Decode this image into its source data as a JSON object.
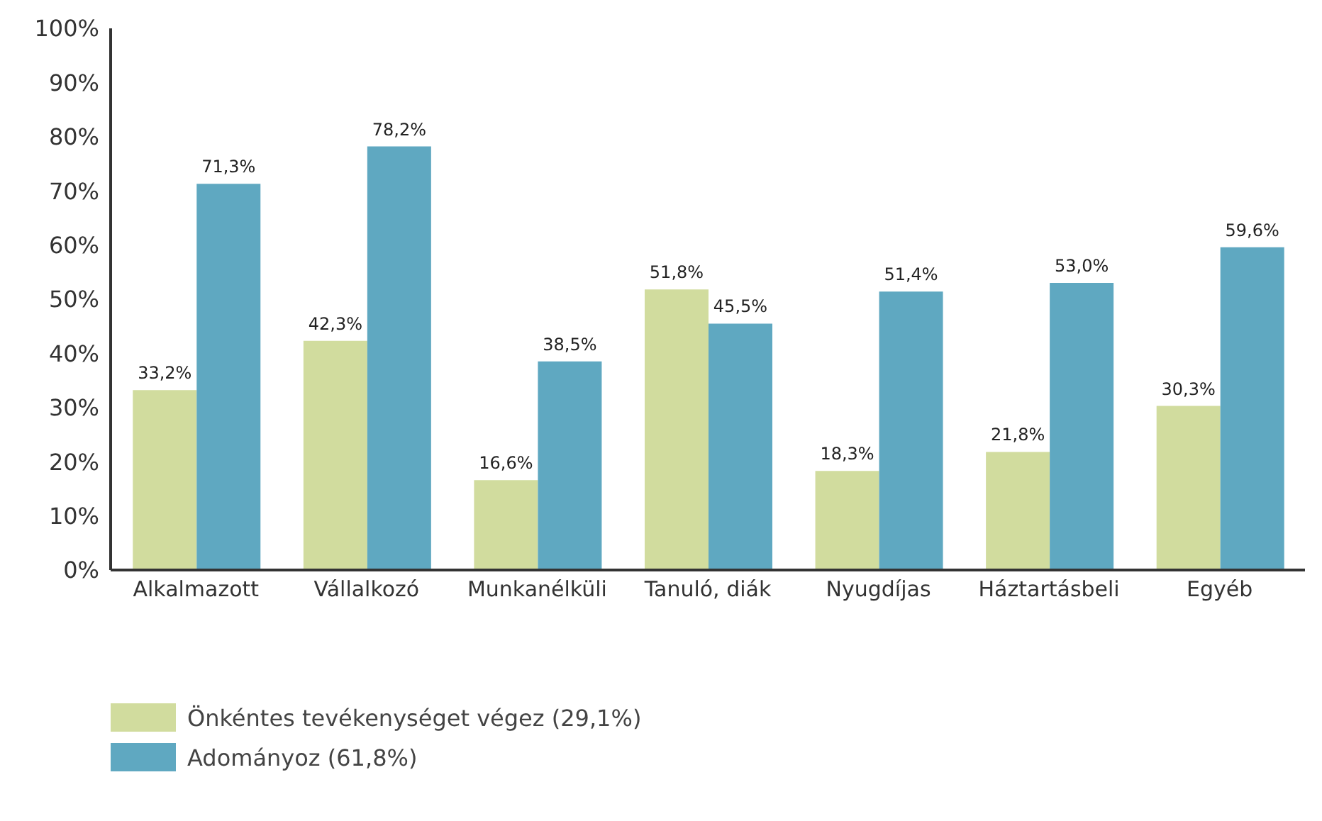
{
  "chart_data": {
    "type": "bar",
    "categories": [
      "Alkalmazott",
      "Vállalkozó",
      "Munkanélküli",
      "Tanuló, diák",
      "Nyugdíjas",
      "Háztartásbeli",
      "Egyéb"
    ],
    "series": [
      {
        "name": "Önkéntes tevékenységet végez (29,1%)",
        "color": "#d1dc9e",
        "values": [
          33.2,
          42.3,
          16.6,
          51.8,
          18.3,
          21.8,
          30.3
        ],
        "value_labels": [
          "33,2%",
          "42,3%",
          "16,6%",
          "51,8%",
          "18,3%",
          "21,8%",
          "30,3%"
        ]
      },
      {
        "name": "Adományoz (61,8%)",
        "color": "#5fa8c1",
        "values": [
          71.3,
          78.2,
          38.5,
          45.5,
          51.4,
          53.0,
          59.6
        ],
        "value_labels": [
          "71,3%",
          "78,2%",
          "38,5%",
          "45,5%",
          "51,4%",
          "53,0%",
          "59,6%"
        ]
      }
    ],
    "ylim": [
      0,
      100
    ],
    "yticks": [
      {
        "value": 0,
        "label": "0%"
      },
      {
        "value": 10,
        "label": "10%"
      },
      {
        "value": 20,
        "label": "20%"
      },
      {
        "value": 30,
        "label": "30%"
      },
      {
        "value": 40,
        "label": "40%"
      },
      {
        "value": 50,
        "label": "50%"
      },
      {
        "value": 60,
        "label": "60%"
      },
      {
        "value": 70,
        "label": "70%"
      },
      {
        "value": 80,
        "label": "80%"
      },
      {
        "value": 90,
        "label": "90%"
      },
      {
        "value": 100,
        "label": "100%"
      }
    ],
    "grid": false,
    "legend": "bottom left"
  }
}
